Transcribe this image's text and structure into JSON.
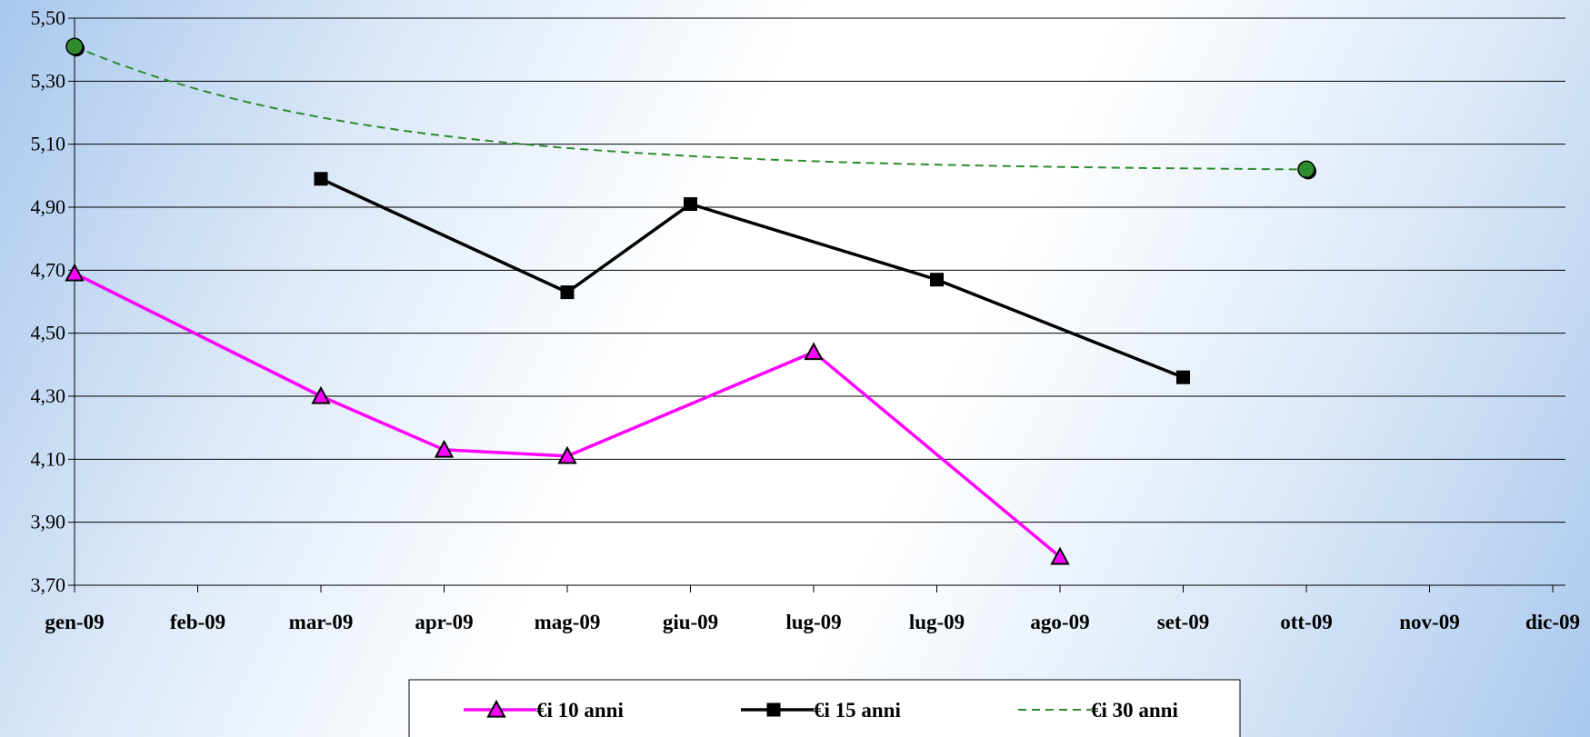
{
  "chart_data": {
    "type": "line",
    "title": "",
    "xlabel": "",
    "ylabel": "",
    "categories": [
      "gen-09",
      "feb-09",
      "mar-09",
      "apr-09",
      "mag-09",
      "giu-09",
      "lug-09",
      "lug-09",
      "ago-09",
      "set-09",
      "ott-09",
      "nov-09",
      "dic-09"
    ],
    "ylim": [
      3.7,
      5.5
    ],
    "yticks": [
      "3,70",
      "3,90",
      "4,10",
      "4,30",
      "4,50",
      "4,70",
      "4,90",
      "5,10",
      "5,30",
      "5,50"
    ],
    "grid": "horizontal",
    "legend_position": "bottom",
    "series": [
      {
        "name": "€i 10 anni",
        "color": "#ff00ff",
        "marker": "triangle",
        "style": "solid",
        "points": [
          [
            0,
            4.69
          ],
          [
            2,
            4.3
          ],
          [
            3,
            4.13
          ],
          [
            4,
            4.11
          ],
          [
            6,
            4.44
          ],
          [
            8,
            3.79
          ]
        ]
      },
      {
        "name": "€i 15 anni",
        "color": "#000000",
        "marker": "square",
        "style": "solid",
        "points": [
          [
            2,
            4.99
          ],
          [
            4,
            4.63
          ],
          [
            5,
            4.91
          ],
          [
            7,
            4.67
          ],
          [
            9,
            4.36
          ]
        ]
      },
      {
        "name": "€i 30 anni",
        "color": "#2e8b2e",
        "marker": "circle",
        "style": "dashed",
        "points": [
          [
            0,
            5.41
          ],
          [
            10,
            5.02
          ]
        ]
      }
    ]
  }
}
